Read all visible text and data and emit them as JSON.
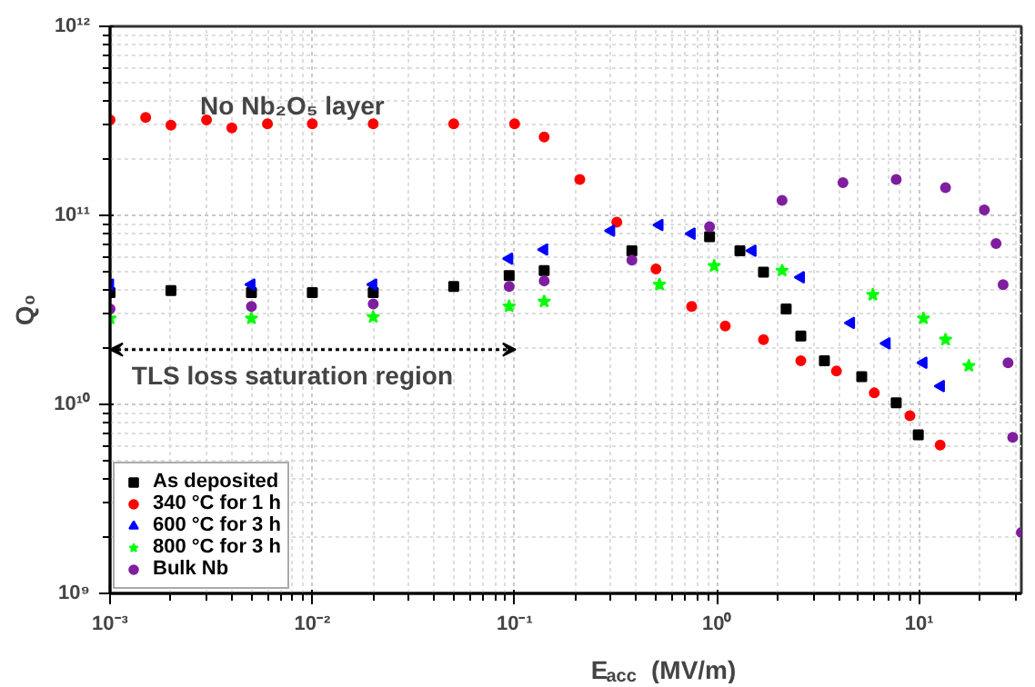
{
  "chart_data": {
    "type": "scatter",
    "xlabel": "E$_{acc}$ (MV/m)",
    "ylabel": "Q₀",
    "log": "xy",
    "grid": true,
    "legend": "bottom left",
    "xlim": [
      0.001,
      32
    ],
    "ylim": [
      1000000000,
      1000000000000
    ],
    "xticks": [
      {
        "value": 0.001,
        "label": "10⁻³"
      },
      {
        "value": 0.01,
        "label": "10⁻²"
      },
      {
        "value": 0.1,
        "label": "10⁻¹"
      },
      {
        "value": 1,
        "label": "10⁰"
      },
      {
        "value": 10,
        "label": "10¹"
      }
    ],
    "yticks": [
      {
        "value": 1000000000,
        "label": "10⁹"
      },
      {
        "value": 10000000000,
        "label": "10¹⁰"
      },
      {
        "value": 100000000000,
        "label": "10¹¹"
      },
      {
        "value": 1000000000000,
        "label": "10¹²"
      }
    ],
    "annotations": [
      "No Nb₂O₅ layer",
      "TLS loss saturation region"
    ],
    "series": [
      {
        "name": "As deposited",
        "color": "#000000",
        "marker": "square",
        "x": [
          0.001,
          0.002,
          0.005,
          0.01,
          0.02,
          0.05,
          0.094,
          0.14,
          0.38,
          0.92,
          1.3,
          1.7,
          2.2,
          2.6,
          3.4,
          5.2,
          7.7,
          9.9
        ],
        "values": [
          39000000000,
          40000000000,
          39000000000,
          39000000000,
          39000000000,
          42000000000,
          48000000000,
          51000000000,
          65000000000,
          77000000000,
          65000000000,
          50000000000,
          32000000000,
          23000000000,
          17000000000,
          14000000000,
          10200000000,
          6900000000
        ]
      },
      {
        "name": "340 °C for 1 h",
        "color": "#ff0000",
        "marker": "circle",
        "x": [
          0.001,
          0.0015,
          0.002,
          0.003,
          0.004,
          0.006,
          0.01,
          0.02,
          0.05,
          0.1,
          0.14,
          0.21,
          0.32,
          0.5,
          0.75,
          1.1,
          1.7,
          2.6,
          3.9,
          6,
          9,
          12.7
        ],
        "values": [
          320000000000,
          330000000000,
          300000000000,
          320000000000,
          290000000000,
          305000000000,
          305000000000,
          305000000000,
          305000000000,
          305000000000,
          260000000000,
          155000000000,
          92000000000,
          52000000000,
          33000000000,
          26000000000,
          22000000000,
          17000000000,
          15000000000,
          11500000000,
          8700000000,
          6100000000
        ]
      },
      {
        "name": "600 °C for 3 h",
        "color": "#0000ff",
        "marker": "triangle",
        "x": [
          0.001,
          0.005,
          0.02,
          0.094,
          0.14,
          0.3,
          0.52,
          0.75,
          1.5,
          2.6,
          4.6,
          6.9,
          10.5,
          12.8
        ],
        "values": [
          43000000000,
          43000000000,
          43000000000,
          59000000000,
          66000000000,
          83000000000,
          89000000000,
          80000000000,
          65000000000,
          47000000000,
          27000000000,
          21000000000,
          16600000000,
          12500000000
        ]
      },
      {
        "name": "800 °C for 3 h",
        "color": "#00ff00",
        "marker": "star",
        "x": [
          0.001,
          0.005,
          0.02,
          0.094,
          0.14,
          0.52,
          0.97,
          2.1,
          5.9,
          10.5,
          13.5,
          17.6
        ],
        "values": [
          28500000000,
          28500000000,
          29000000000,
          33000000000,
          35000000000,
          43000000000,
          54000000000,
          51000000000,
          38000000000,
          28500000000,
          22000000000,
          16000000000
        ]
      },
      {
        "name": "Bulk Nb",
        "color": "#7f1f9f",
        "marker": "circle",
        "x": [
          0.001,
          0.005,
          0.02,
          0.094,
          0.14,
          0.38,
          0.92,
          2.1,
          4.2,
          7.7,
          13.5,
          21,
          24,
          26,
          27.5,
          29,
          32
        ],
        "values": [
          32000000000,
          33000000000,
          34000000000,
          42000000000,
          45000000000,
          58000000000,
          87000000000,
          120000000000,
          149000000000,
          155000000000,
          140000000000,
          107000000000,
          71000000000,
          43000000000,
          16600000000,
          6700000000,
          2100000000
        ]
      }
    ]
  }
}
